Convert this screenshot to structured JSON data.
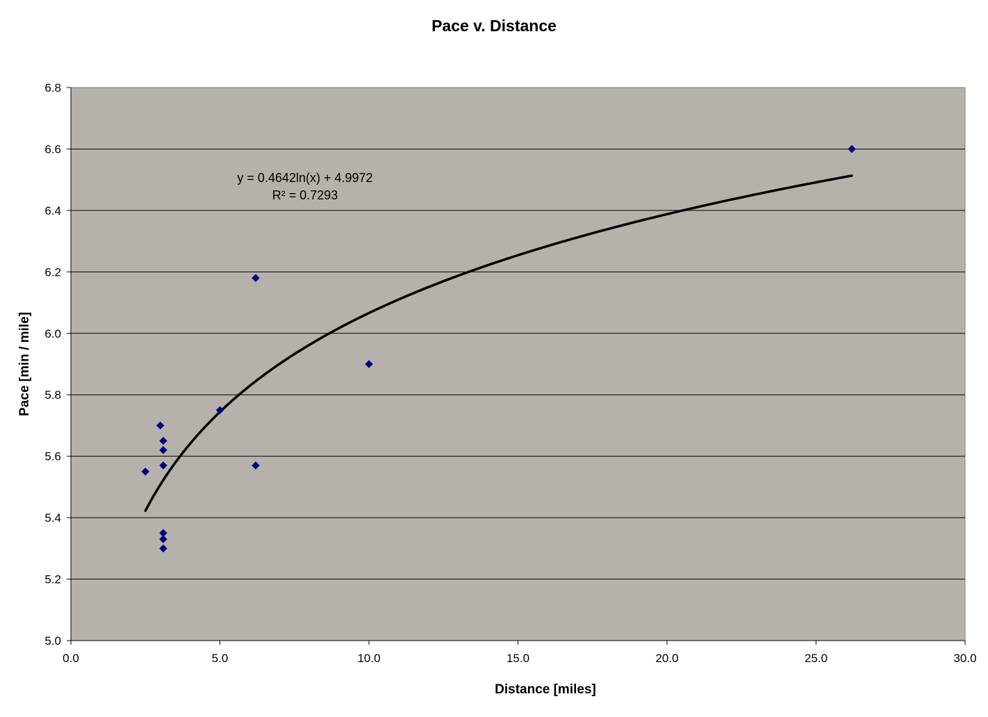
{
  "chart_data": {
    "type": "scatter",
    "title": "Pace v. Distance",
    "xlabel": "Distance [miles]",
    "ylabel": "Pace [min / mile]",
    "xlim": [
      0,
      30
    ],
    "ylim": [
      5.0,
      6.8
    ],
    "x_ticks": [
      "0.0",
      "5.0",
      "10.0",
      "15.0",
      "20.0",
      "25.0",
      "30.0"
    ],
    "y_ticks": [
      "5.0",
      "5.2",
      "5.4",
      "5.6",
      "5.8",
      "6.0",
      "6.2",
      "6.4",
      "6.6",
      "6.8"
    ],
    "grid": "horizontal major gridlines",
    "plot_background": "#b7b1ab",
    "marker_color": "#000080",
    "trendline_color": "#000000",
    "series": [
      {
        "marker": "diamond",
        "points": [
          {
            "x": 2.5,
            "y": 5.55
          },
          {
            "x": 3.0,
            "y": 5.7
          },
          {
            "x": 3.1,
            "y": 5.65
          },
          {
            "x": 3.1,
            "y": 5.62
          },
          {
            "x": 3.1,
            "y": 5.57
          },
          {
            "x": 3.1,
            "y": 5.35
          },
          {
            "x": 3.1,
            "y": 5.33
          },
          {
            "x": 3.1,
            "y": 5.3
          },
          {
            "x": 5.0,
            "y": 5.75
          },
          {
            "x": 6.2,
            "y": 6.18
          },
          {
            "x": 6.2,
            "y": 5.57
          },
          {
            "x": 10.0,
            "y": 5.9
          },
          {
            "x": 26.2,
            "y": 6.6
          }
        ]
      }
    ],
    "trendline": {
      "type": "logarithmic",
      "a": 0.4642,
      "b": 4.9972,
      "x_range": [
        2.5,
        26.2
      ],
      "equation_label": "y = 0.4642ln(x) + 4.9972",
      "r2_label": "R² = 0.7293"
    }
  }
}
